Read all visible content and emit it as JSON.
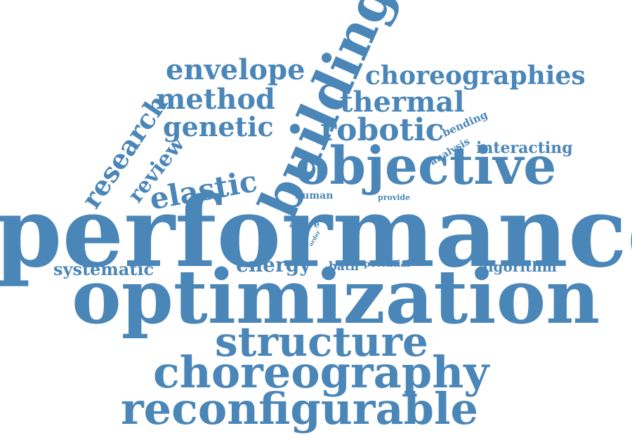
{
  "colors": {
    "word": "#4a86b8",
    "background": "#ffffff"
  },
  "words": {
    "performance": "performance",
    "optimization": "optimization",
    "building": "building",
    "objective": "objective",
    "structure": "structure",
    "choreography": "choreography",
    "reconfigurable": "reconfigurable",
    "choreographies": "choreographies",
    "thermal": "thermal",
    "robotic": "robotic",
    "envelope": "envelope",
    "method": "method",
    "genetic": "genetic",
    "elastic": "elastic",
    "research": "research",
    "review": "review",
    "interacting": "interacting",
    "bending": "bending",
    "analysis": "analysis",
    "systematic": "systematic",
    "energy": "energy",
    "bath": "bath",
    "potential": "potential",
    "algorithm": "algorithm",
    "human": "human",
    "provide": "provide",
    "active": "active",
    "field": "field",
    "result": "result",
    "order": "order"
  }
}
